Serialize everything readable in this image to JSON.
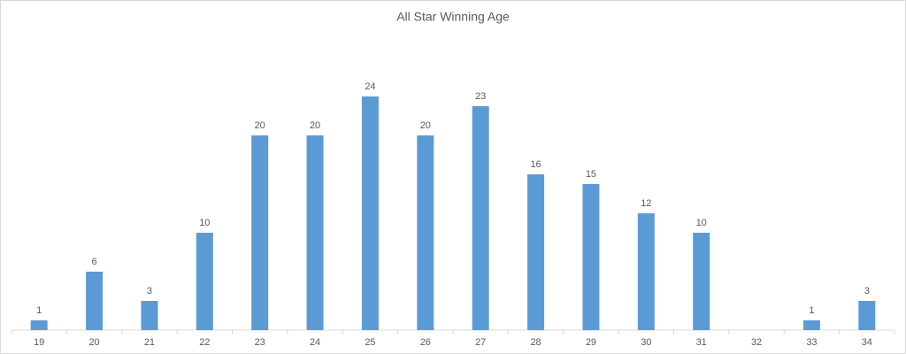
{
  "chart_data": {
    "type": "bar",
    "title": "All Star Winning Age",
    "categories": [
      "19",
      "20",
      "21",
      "22",
      "23",
      "24",
      "25",
      "26",
      "27",
      "28",
      "29",
      "30",
      "31",
      "32",
      "33",
      "34"
    ],
    "values": [
      1,
      6,
      3,
      10,
      20,
      20,
      24,
      20,
      23,
      16,
      15,
      12,
      10,
      null,
      1,
      3
    ],
    "color": "#5b9bd5"
  }
}
